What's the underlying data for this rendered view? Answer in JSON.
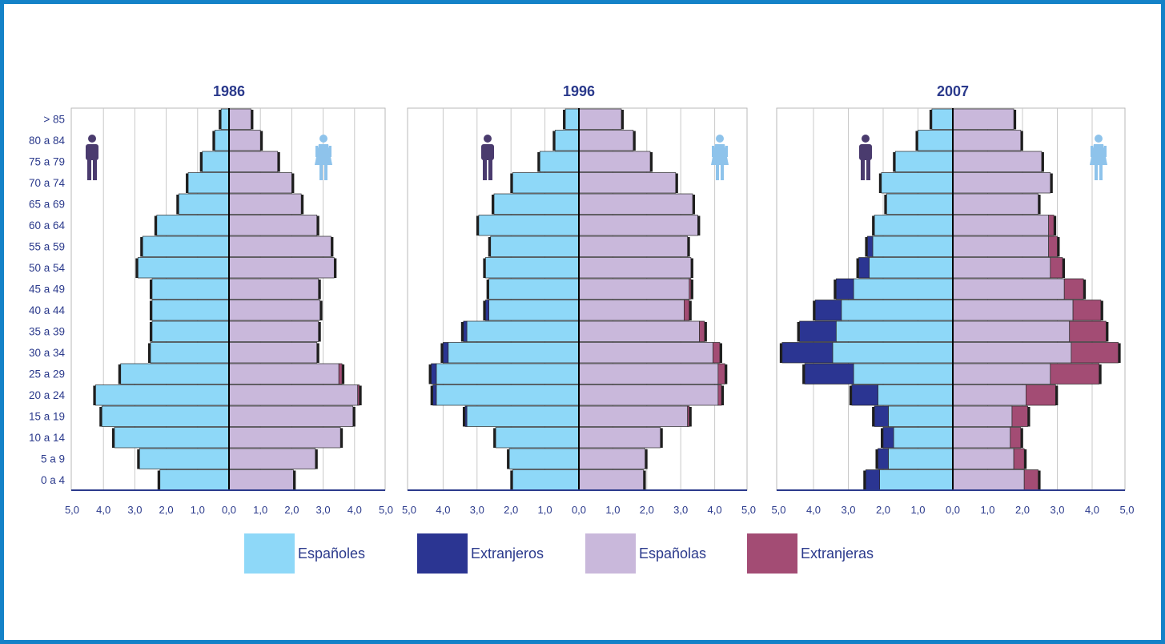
{
  "colors": {
    "frame": "#1482c8",
    "espanoles": "#8ed8f8",
    "extranjeros": "#2b3592",
    "espanolas": "#c9b8db",
    "extranjeras": "#a34c74",
    "axis_text": "#2b3a8c",
    "male_icon": "#4a3b6e",
    "female_icon": "#8ec3eb"
  },
  "icons": {
    "male": "male-person-icon",
    "female": "female-person-icon"
  },
  "legend": [
    {
      "label": "Españoles",
      "color": "#8ed8f8"
    },
    {
      "label": "Extranjeros",
      "color": "#2b3592"
    },
    {
      "label": "Españolas",
      "color": "#c9b8db"
    },
    {
      "label": "Extranjeras",
      "color": "#a34c74"
    }
  ],
  "chart_data": [
    {
      "type": "bar",
      "title": "1986",
      "categories": [
        "> 85",
        "80 a 84",
        "75 a 79",
        "70 a 74",
        "65 a 69",
        "60 a 64",
        "55 a 59",
        "50 a 54",
        "45 a 49",
        "40 a 44",
        "35 a 39",
        "30 a 34",
        "25 a 29",
        "20 a 24",
        "15 a 19",
        "10 a 14",
        "5 a 9",
        "0 a 4"
      ],
      "xlim": [
        -5,
        5
      ],
      "x_ticks": [
        "5,0",
        "4,0",
        "3,0",
        "2,0",
        "1,0",
        "0,0",
        "1,0",
        "2,0",
        "3,0",
        "4,0",
        "5,0"
      ],
      "series": [
        {
          "name": "Españoles",
          "side": "left",
          "values": [
            0.25,
            0.45,
            0.85,
            1.3,
            1.6,
            2.3,
            2.75,
            2.9,
            2.45,
            2.45,
            2.45,
            2.5,
            3.45,
            4.25,
            4.05,
            3.65,
            2.85,
            2.2
          ]
        },
        {
          "name": "Extranjeros",
          "side": "left",
          "values": [
            0,
            0,
            0,
            0,
            0,
            0,
            0,
            0,
            0,
            0,
            0,
            0,
            0,
            0,
            0,
            0,
            0,
            0
          ]
        },
        {
          "name": "Españolas",
          "side": "right",
          "values": [
            0.7,
            1.0,
            1.55,
            2.0,
            2.3,
            2.8,
            3.25,
            3.35,
            2.85,
            2.9,
            2.85,
            2.8,
            3.5,
            4.1,
            3.95,
            3.55,
            2.75,
            2.05
          ]
        },
        {
          "name": "Extranjeras",
          "side": "right",
          "values": [
            0,
            0,
            0,
            0,
            0,
            0,
            0,
            0,
            0,
            0,
            0,
            0,
            0.1,
            0.05,
            0,
            0,
            0,
            0
          ]
        }
      ]
    },
    {
      "type": "bar",
      "title": "1996",
      "categories": [
        "> 85",
        "80 a 84",
        "75 a 79",
        "70 a 74",
        "65 a 69",
        "60 a 64",
        "55 a 59",
        "50 a 54",
        "45 a 49",
        "40 a 44",
        "35 a 39",
        "30 a 34",
        "25 a 29",
        "20 a 24",
        "15 a 19",
        "10 a 14",
        "5 a 9",
        "0 a 4"
      ],
      "xlim": [
        -5,
        5
      ],
      "x_ticks": [
        "5,0",
        "4,0",
        "3,0",
        "2,0",
        "1,0",
        "0,0",
        "1,0",
        "2,0",
        "3,0",
        "4,0",
        "5,0"
      ],
      "series": [
        {
          "name": "Españoles",
          "side": "left",
          "values": [
            0.4,
            0.7,
            1.15,
            1.95,
            2.5,
            2.95,
            2.6,
            2.75,
            2.65,
            2.65,
            3.3,
            3.85,
            4.2,
            4.2,
            3.3,
            2.45,
            2.05,
            1.95
          ]
        },
        {
          "name": "Extranjeros",
          "side": "left",
          "values": [
            0,
            0,
            0,
            0,
            0,
            0,
            0,
            0,
            0,
            0.1,
            0.1,
            0.15,
            0.15,
            0.1,
            0.05,
            0,
            0,
            0
          ]
        },
        {
          "name": "Españolas",
          "side": "right",
          "values": [
            1.25,
            1.6,
            2.1,
            2.85,
            3.35,
            3.5,
            3.2,
            3.3,
            3.25,
            3.1,
            3.55,
            3.95,
            4.1,
            4.1,
            3.2,
            2.4,
            1.95,
            1.9
          ]
        },
        {
          "name": "Extranjeras",
          "side": "right",
          "values": [
            0,
            0,
            0,
            0,
            0,
            0,
            0,
            0,
            0.05,
            0.15,
            0.15,
            0.2,
            0.2,
            0.1,
            0.05,
            0,
            0,
            0
          ]
        }
      ]
    },
    {
      "type": "bar",
      "title": "2007",
      "categories": [
        "> 85",
        "80 a 84",
        "75 a 79",
        "70 a 74",
        "65 a 69",
        "60 a 64",
        "55 a 59",
        "50 a 54",
        "45 a 49",
        "40 a 44",
        "35 a 39",
        "30 a 34",
        "25 a 29",
        "20 a 24",
        "15 a 19",
        "10 a 14",
        "5 a 9",
        "0 a 4"
      ],
      "xlim": [
        -5,
        5
      ],
      "x_ticks": [
        "5,0",
        "4,0",
        "3,0",
        "2,0",
        "1,0",
        "0,0",
        "1,0",
        "2,0",
        "3,0",
        "4,0",
        "5,0"
      ],
      "series": [
        {
          "name": "Españoles",
          "side": "left",
          "values": [
            0.6,
            1.0,
            1.65,
            2.05,
            1.9,
            2.25,
            2.3,
            2.4,
            2.85,
            3.2,
            3.35,
            3.45,
            2.85,
            2.15,
            1.85,
            1.7,
            1.85,
            2.1
          ]
        },
        {
          "name": "Extranjeros",
          "side": "left",
          "values": [
            0,
            0,
            0,
            0,
            0,
            0,
            0.15,
            0.3,
            0.5,
            0.75,
            1.05,
            1.45,
            1.4,
            0.75,
            0.4,
            0.3,
            0.3,
            0.4
          ]
        },
        {
          "name": "Españolas",
          "side": "right",
          "values": [
            1.75,
            1.95,
            2.55,
            2.8,
            2.45,
            2.75,
            2.75,
            2.8,
            3.2,
            3.45,
            3.35,
            3.4,
            2.8,
            2.1,
            1.7,
            1.65,
            1.75,
            2.05
          ]
        },
        {
          "name": "Extranjeras",
          "side": "right",
          "values": [
            0,
            0,
            0,
            0,
            0,
            0.15,
            0.25,
            0.35,
            0.55,
            0.8,
            1.05,
            1.35,
            1.4,
            0.85,
            0.45,
            0.3,
            0.3,
            0.4
          ]
        }
      ]
    }
  ]
}
